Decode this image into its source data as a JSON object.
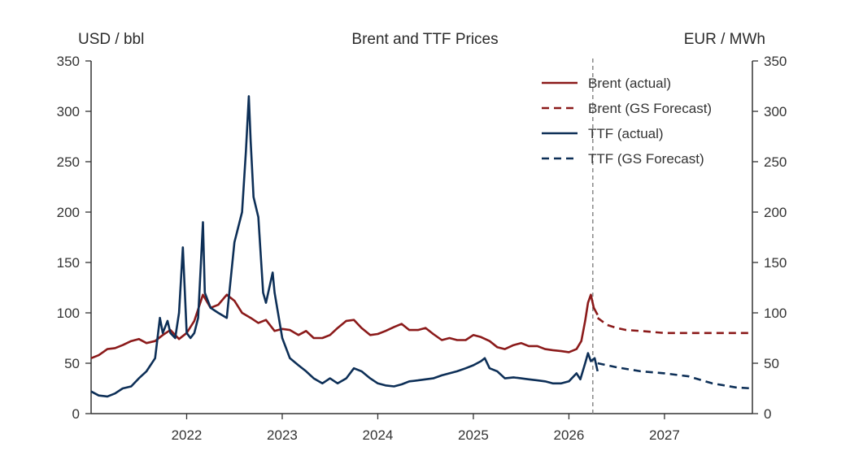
{
  "chart_data": {
    "type": "line",
    "title": "Brent and TTF Prices",
    "ylabel_left": "USD / bbl",
    "ylabel_right": "EUR / MWh",
    "xlim": [
      2021.0,
      2027.92
    ],
    "ylim": [
      0,
      350
    ],
    "x_ticks": [
      2022,
      2023,
      2024,
      2025,
      2026,
      2027
    ],
    "y_ticks": [
      0,
      50,
      100,
      150,
      200,
      250,
      300,
      350
    ],
    "forecast_start": 2026.25,
    "legend_position": "top-right",
    "colors": {
      "brent": "#8b1a1a",
      "ttf": "#0d2f57",
      "divider": "#888888",
      "axis": "#333333"
    },
    "series": [
      {
        "name": "Brent (actual)",
        "axis": "left",
        "style": "solid",
        "color": "#8b1a1a",
        "points": [
          [
            2021.0,
            55
          ],
          [
            2021.08,
            58
          ],
          [
            2021.17,
            64
          ],
          [
            2021.25,
            65
          ],
          [
            2021.33,
            68
          ],
          [
            2021.42,
            72
          ],
          [
            2021.5,
            74
          ],
          [
            2021.58,
            70
          ],
          [
            2021.67,
            72
          ],
          [
            2021.75,
            78
          ],
          [
            2021.83,
            83
          ],
          [
            2021.92,
            74
          ],
          [
            2022.0,
            80
          ],
          [
            2022.08,
            92
          ],
          [
            2022.17,
            118
          ],
          [
            2022.25,
            105
          ],
          [
            2022.33,
            108
          ],
          [
            2022.42,
            118
          ],
          [
            2022.5,
            112
          ],
          [
            2022.58,
            100
          ],
          [
            2022.67,
            95
          ],
          [
            2022.75,
            90
          ],
          [
            2022.83,
            93
          ],
          [
            2022.92,
            82
          ],
          [
            2023.0,
            84
          ],
          [
            2023.08,
            83
          ],
          [
            2023.17,
            78
          ],
          [
            2023.25,
            82
          ],
          [
            2023.33,
            75
          ],
          [
            2023.42,
            75
          ],
          [
            2023.5,
            78
          ],
          [
            2023.58,
            85
          ],
          [
            2023.67,
            92
          ],
          [
            2023.75,
            93
          ],
          [
            2023.83,
            85
          ],
          [
            2023.92,
            78
          ],
          [
            2024.0,
            79
          ],
          [
            2024.08,
            82
          ],
          [
            2024.17,
            86
          ],
          [
            2024.25,
            89
          ],
          [
            2024.33,
            83
          ],
          [
            2024.42,
            83
          ],
          [
            2024.5,
            85
          ],
          [
            2024.58,
            79
          ],
          [
            2024.67,
            73
          ],
          [
            2024.75,
            75
          ],
          [
            2024.83,
            73
          ],
          [
            2024.92,
            73
          ],
          [
            2025.0,
            78
          ],
          [
            2025.08,
            76
          ],
          [
            2025.17,
            72
          ],
          [
            2025.25,
            66
          ],
          [
            2025.33,
            64
          ],
          [
            2025.42,
            68
          ],
          [
            2025.5,
            70
          ],
          [
            2025.58,
            67
          ],
          [
            2025.67,
            67
          ],
          [
            2025.75,
            64
          ],
          [
            2025.83,
            63
          ],
          [
            2025.92,
            62
          ],
          [
            2026.0,
            61
          ],
          [
            2026.08,
            64
          ],
          [
            2026.13,
            72
          ],
          [
            2026.17,
            92
          ],
          [
            2026.2,
            110
          ],
          [
            2026.23,
            118
          ],
          [
            2026.26,
            105
          ],
          [
            2026.3,
            98
          ]
        ]
      },
      {
        "name": "Brent (GS Forecast)",
        "axis": "left",
        "style": "dashed",
        "color": "#8b1a1a",
        "points": [
          [
            2026.3,
            95
          ],
          [
            2026.4,
            88
          ],
          [
            2026.5,
            85
          ],
          [
            2026.6,
            83
          ],
          [
            2026.75,
            82
          ],
          [
            2027.0,
            80
          ],
          [
            2027.5,
            80
          ],
          [
            2027.92,
            80
          ]
        ]
      },
      {
        "name": "TTF (actual)",
        "axis": "right",
        "style": "solid",
        "color": "#0d2f57",
        "points": [
          [
            2021.0,
            22
          ],
          [
            2021.08,
            18
          ],
          [
            2021.17,
            17
          ],
          [
            2021.25,
            20
          ],
          [
            2021.33,
            25
          ],
          [
            2021.42,
            27
          ],
          [
            2021.5,
            35
          ],
          [
            2021.58,
            42
          ],
          [
            2021.67,
            55
          ],
          [
            2021.72,
            95
          ],
          [
            2021.75,
            80
          ],
          [
            2021.8,
            92
          ],
          [
            2021.83,
            80
          ],
          [
            2021.88,
            75
          ],
          [
            2021.92,
            100
          ],
          [
            2021.96,
            165
          ],
          [
            2022.0,
            80
          ],
          [
            2022.04,
            75
          ],
          [
            2022.08,
            80
          ],
          [
            2022.12,
            95
          ],
          [
            2022.17,
            190
          ],
          [
            2022.19,
            120
          ],
          [
            2022.25,
            105
          ],
          [
            2022.33,
            100
          ],
          [
            2022.42,
            95
          ],
          [
            2022.5,
            170
          ],
          [
            2022.58,
            200
          ],
          [
            2022.62,
            260
          ],
          [
            2022.65,
            315
          ],
          [
            2022.67,
            270
          ],
          [
            2022.7,
            215
          ],
          [
            2022.75,
            195
          ],
          [
            2022.8,
            120
          ],
          [
            2022.83,
            110
          ],
          [
            2022.9,
            140
          ],
          [
            2022.92,
            120
          ],
          [
            2023.0,
            75
          ],
          [
            2023.08,
            55
          ],
          [
            2023.17,
            48
          ],
          [
            2023.25,
            42
          ],
          [
            2023.33,
            35
          ],
          [
            2023.42,
            30
          ],
          [
            2023.5,
            35
          ],
          [
            2023.58,
            30
          ],
          [
            2023.67,
            35
          ],
          [
            2023.75,
            45
          ],
          [
            2023.83,
            42
          ],
          [
            2023.92,
            35
          ],
          [
            2024.0,
            30
          ],
          [
            2024.08,
            28
          ],
          [
            2024.17,
            27
          ],
          [
            2024.25,
            29
          ],
          [
            2024.33,
            32
          ],
          [
            2024.42,
            33
          ],
          [
            2024.5,
            34
          ],
          [
            2024.58,
            35
          ],
          [
            2024.67,
            38
          ],
          [
            2024.75,
            40
          ],
          [
            2024.83,
            42
          ],
          [
            2024.92,
            45
          ],
          [
            2025.0,
            48
          ],
          [
            2025.08,
            52
          ],
          [
            2025.12,
            55
          ],
          [
            2025.17,
            45
          ],
          [
            2025.25,
            42
          ],
          [
            2025.33,
            35
          ],
          [
            2025.42,
            36
          ],
          [
            2025.5,
            35
          ],
          [
            2025.58,
            34
          ],
          [
            2025.67,
            33
          ],
          [
            2025.75,
            32
          ],
          [
            2025.83,
            30
          ],
          [
            2025.92,
            30
          ],
          [
            2026.0,
            32
          ],
          [
            2026.08,
            40
          ],
          [
            2026.12,
            34
          ],
          [
            2026.17,
            50
          ],
          [
            2026.2,
            60
          ],
          [
            2026.23,
            52
          ],
          [
            2026.27,
            55
          ],
          [
            2026.3,
            42
          ]
        ]
      },
      {
        "name": "TTF (GS Forecast)",
        "axis": "right",
        "style": "dashed",
        "color": "#0d2f57",
        "points": [
          [
            2026.3,
            50
          ],
          [
            2026.5,
            46
          ],
          [
            2026.75,
            42
          ],
          [
            2027.0,
            40
          ],
          [
            2027.25,
            37
          ],
          [
            2027.5,
            30
          ],
          [
            2027.75,
            26
          ],
          [
            2027.92,
            25
          ]
        ]
      }
    ]
  }
}
